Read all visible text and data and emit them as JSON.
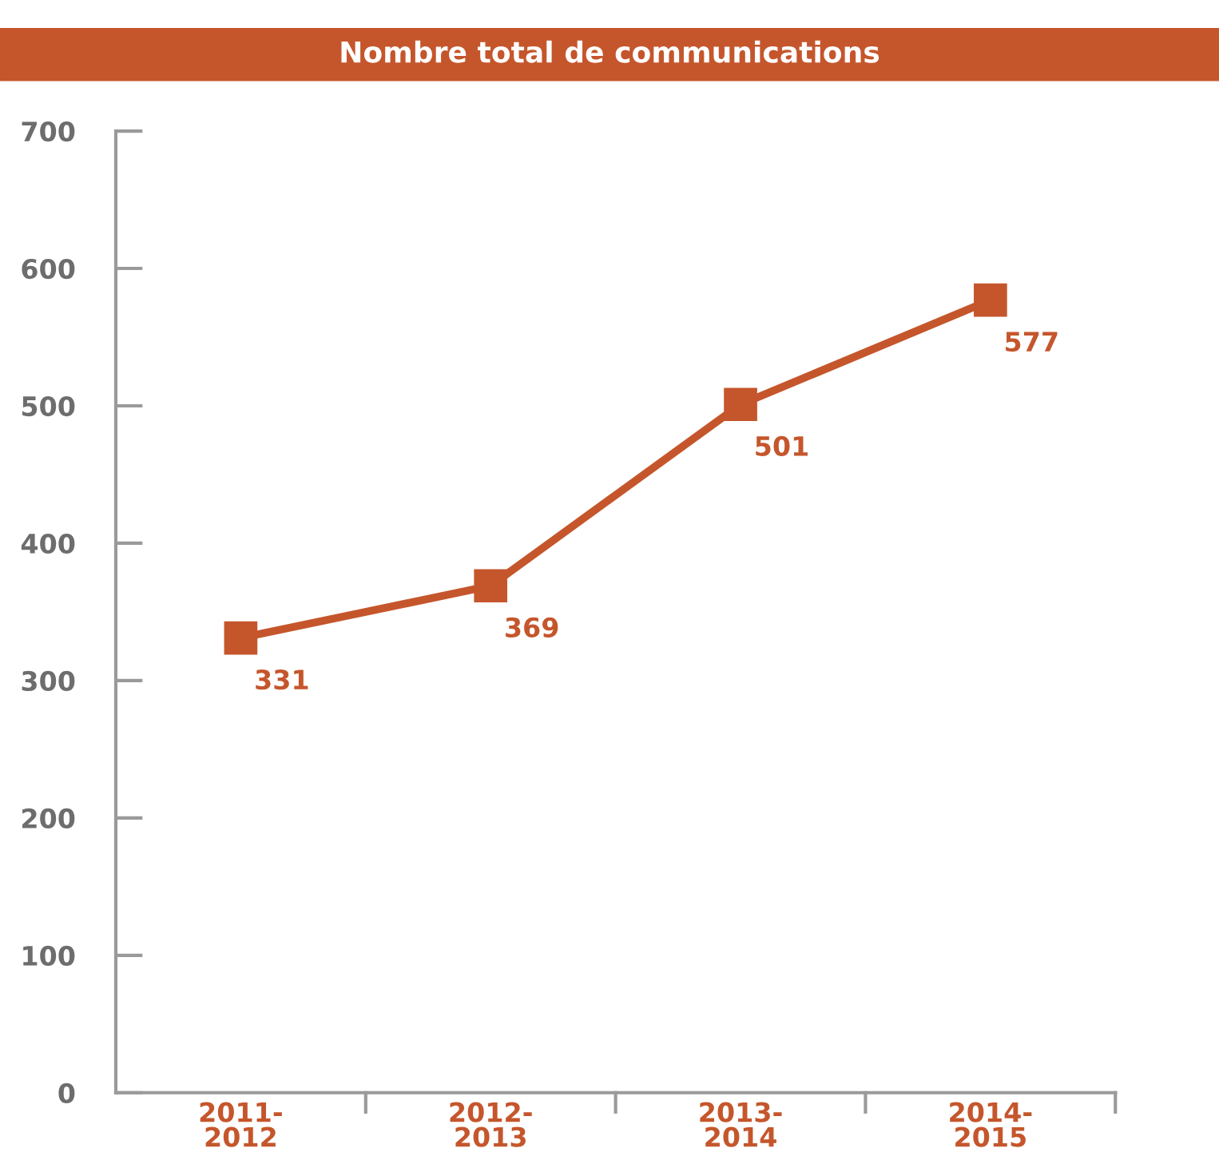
{
  "chart_data": {
    "type": "line",
    "title": "Nombre total de communications",
    "categories": [
      "2011-\n2012",
      "2012-\n2013",
      "2013-\n2014",
      "2014-\n2015"
    ],
    "series": [
      {
        "color": "#c5562c",
        "values": [
          331,
          369,
          501,
          577
        ]
      }
    ],
    "ylim": [
      0,
      700
    ],
    "yticks": [
      0,
      100,
      200,
      300,
      400,
      500,
      600,
      700
    ],
    "marker": "square",
    "line_style": "solid",
    "data_labels": true,
    "grid": false,
    "legend": false
  }
}
